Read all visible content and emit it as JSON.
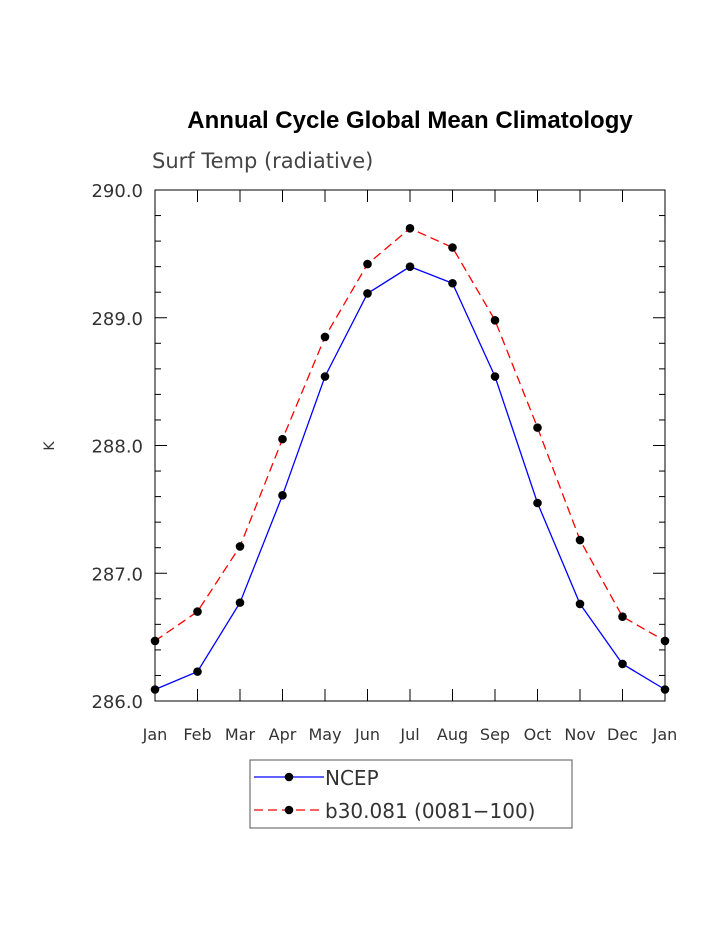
{
  "chart_data": {
    "type": "line",
    "title": "Annual Cycle Global Mean Climatology",
    "subtitle": "Surf Temp (radiative)",
    "xlabel": "",
    "ylabel": "K",
    "categories": [
      "Jan",
      "Feb",
      "Mar",
      "Apr",
      "May",
      "Jun",
      "Jul",
      "Aug",
      "Sep",
      "Oct",
      "Nov",
      "Dec",
      "Jan"
    ],
    "ylim": [
      286.0,
      290.0
    ],
    "yticks": [
      "286.0",
      "287.0",
      "288.0",
      "289.0",
      "290.0"
    ],
    "grid": false,
    "legend_position": "bottom",
    "series": [
      {
        "name": "NCEP",
        "color": "#0000ff",
        "dash": "solid",
        "marker": "filled-circle",
        "values": [
          286.09,
          286.23,
          286.77,
          287.61,
          288.54,
          289.19,
          289.4,
          289.27,
          288.54,
          287.55,
          286.76,
          286.29,
          286.09
        ]
      },
      {
        "name": "b30.081 (0081−100)",
        "color": "#ff0000",
        "dash": "dashed",
        "marker": "filled-circle",
        "values": [
          286.47,
          286.7,
          287.21,
          288.05,
          288.85,
          289.42,
          289.7,
          289.55,
          288.98,
          288.14,
          287.26,
          286.66,
          286.47
        ]
      }
    ]
  }
}
